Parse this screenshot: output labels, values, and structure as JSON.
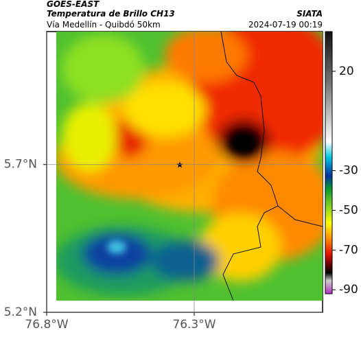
{
  "header": {
    "title": "GOES-EAST",
    "subtitle": "Temperatura de Brillo CH13",
    "region": "Vía Medellín - Quibdó 50km",
    "source": "SIATA",
    "datetime": "2024-07-19 00:19"
  },
  "map": {
    "xlim": [
      -76.8,
      -75.865
    ],
    "ylim": [
      5.2,
      6.15
    ],
    "xticks": [
      {
        "value": -76.8,
        "label": "76.8°W"
      },
      {
        "value": -76.3,
        "label": "76.3°W"
      }
    ],
    "yticks": [
      {
        "value": 5.2,
        "label": "5.2°N"
      },
      {
        "value": 5.7,
        "label": "5.7°N"
      }
    ],
    "grid": true
  },
  "colorbar": {
    "lim": [
      -92,
      40
    ],
    "ticks": [
      20,
      -30,
      -50,
      -70,
      -90
    ]
  }
}
